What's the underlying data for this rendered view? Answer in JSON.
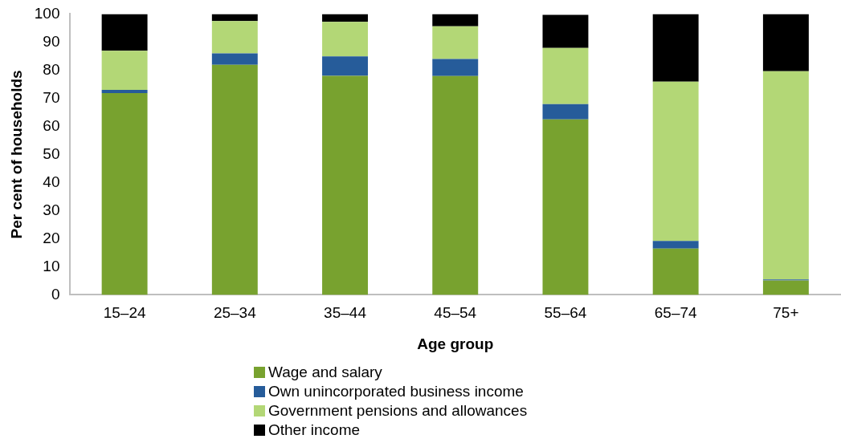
{
  "chart_data": {
    "type": "bar",
    "stacked": true,
    "xlabel": "Age group",
    "ylabel": "Per cent of households",
    "categories": [
      "15–24",
      "25–34",
      "35–44",
      "45–54",
      "55–64",
      "65–74",
      "75+"
    ],
    "series": [
      {
        "name": "Wage and salary",
        "color": "#78a22f",
        "values": [
          71.8,
          81.9,
          78.0,
          77.9,
          62.5,
          16.5,
          5.1
        ]
      },
      {
        "name": "Own unincorporated business income",
        "color": "#265c9a",
        "values": [
          1.2,
          4.1,
          6.9,
          6.1,
          5.4,
          2.7,
          0.4
        ]
      },
      {
        "name": "Government pensions and allowances",
        "color": "#b3d776",
        "values": [
          13.9,
          11.5,
          12.3,
          11.6,
          20.0,
          56.7,
          74.1
        ]
      },
      {
        "name": "Other income",
        "color": "#000000",
        "values": [
          13.1,
          2.5,
          2.8,
          4.4,
          11.8,
          24.1,
          20.4
        ]
      }
    ],
    "ylim": [
      0,
      100
    ],
    "yticks": [
      0,
      10,
      20,
      30,
      40,
      50,
      60,
      70,
      80,
      90,
      100
    ],
    "grid": false,
    "legend": "bottom"
  }
}
